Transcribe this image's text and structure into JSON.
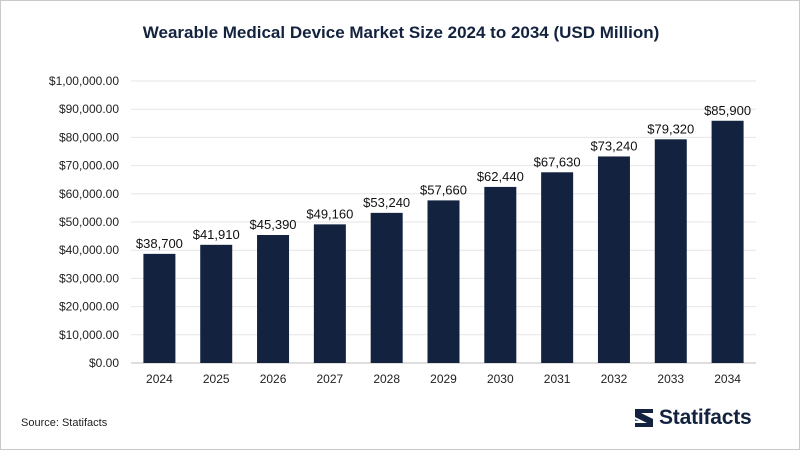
{
  "chart_data": {
    "type": "bar",
    "title": "Wearable Medical Device Market Size 2024 to 2034 (USD Million)",
    "categories": [
      "2024",
      "2025",
      "2026",
      "2027",
      "2028",
      "2029",
      "2030",
      "2031",
      "2032",
      "2033",
      "2034"
    ],
    "values": [
      38700,
      41910,
      45390,
      49160,
      53240,
      57660,
      62440,
      67630,
      73240,
      79320,
      85900
    ],
    "data_labels": [
      "$38,700",
      "$41,910",
      "$45,390",
      "$49,160",
      "$53,240",
      "$57,660",
      "$62,440",
      "$67,630",
      "$73,240",
      "$79,320",
      "$85,900"
    ],
    "y_ticks": [
      0,
      10000,
      20000,
      30000,
      40000,
      50000,
      60000,
      70000,
      80000,
      90000,
      100000
    ],
    "y_tick_labels": [
      "$0.00",
      "$10,000.00",
      "$20,000.00",
      "$30,000.00",
      "$40,000.00",
      "$50,000.00",
      "$60,000.00",
      "$70,000.00",
      "$80,000.00",
      "$90,000.00",
      "$1,00,000.00"
    ],
    "ylim": [
      0,
      100000
    ],
    "xlabel": "",
    "ylabel": "",
    "grid": true,
    "legend": "none",
    "bar_color": "#13233f"
  },
  "footer": {
    "source": "Source: Statifacts",
    "brand": "Statifacts"
  },
  "colors": {
    "title": "#13233f",
    "grid": "#e6e6e6"
  }
}
